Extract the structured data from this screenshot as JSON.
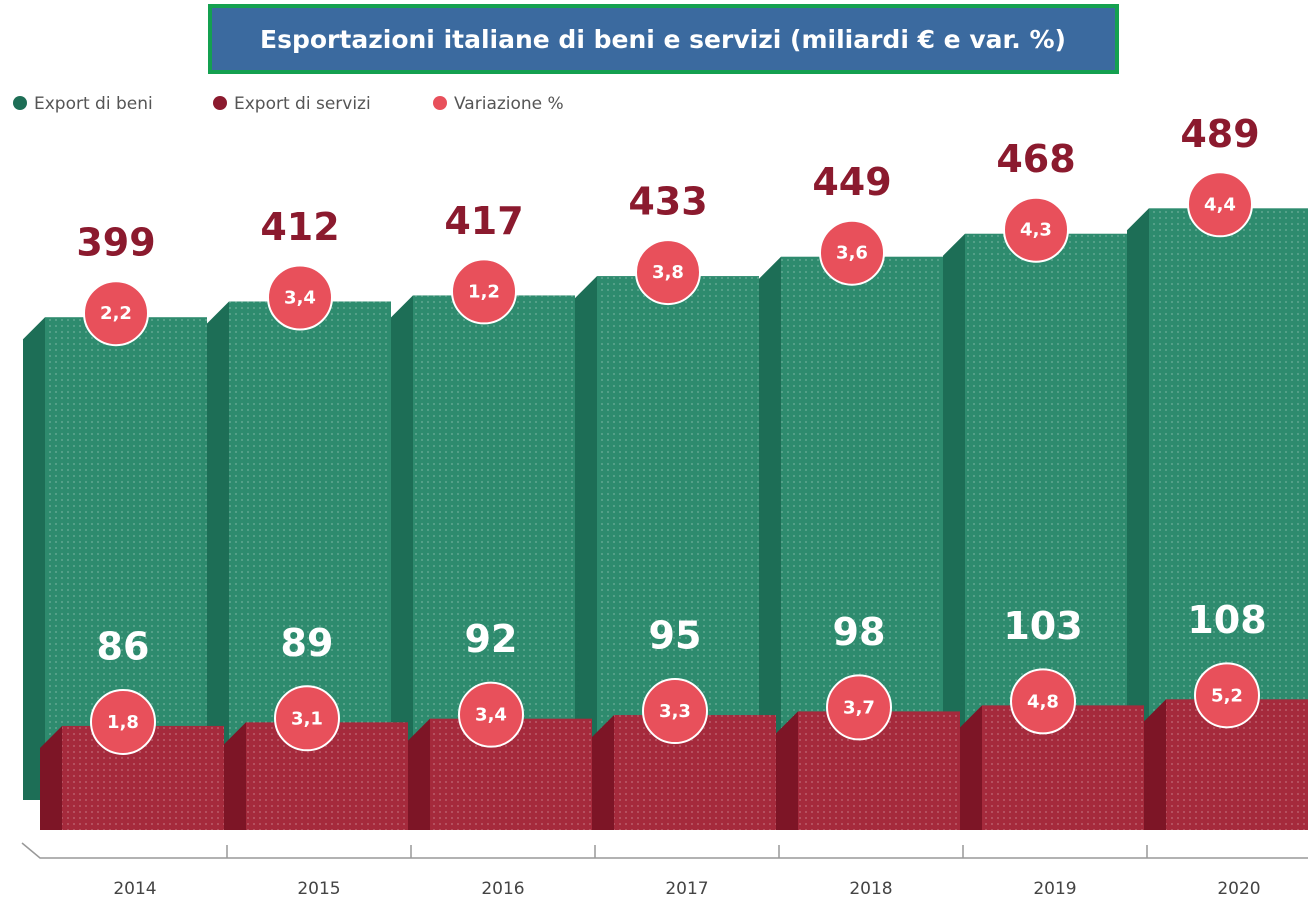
{
  "chart_data": {
    "type": "bar3d",
    "title": "Esportazioni italiane di beni e servizi (miliardi € e var. %)",
    "categories": [
      "2014",
      "2015",
      "2016",
      "2017",
      "2018",
      "2019",
      "2020"
    ],
    "series": [
      {
        "name": "Export di beni",
        "color": "#2e8b6e",
        "values": [
          399,
          412,
          417,
          433,
          449,
          468,
          489
        ],
        "change_values": [
          2.2,
          3.4,
          1.2,
          3.8,
          3.6,
          4.3,
          4.4
        ],
        "change_labels": [
          "2,2",
          "3,4",
          "1,2",
          "3,8",
          "3,6",
          "4,3",
          "4,4"
        ]
      },
      {
        "name": "Export di servizi",
        "color": "#a52a3c",
        "values": [
          86,
          89,
          92,
          95,
          98,
          103,
          108
        ],
        "change_values": [
          1.8,
          3.1,
          3.4,
          3.3,
          3.7,
          4.8,
          5.2
        ],
        "change_labels": [
          "1,8",
          "3,1",
          "3,4",
          "3,3",
          "3,7",
          "4,8",
          "5,2"
        ]
      }
    ],
    "change_legend": {
      "name": "Variazione %",
      "color": "#e8505b"
    }
  }
}
